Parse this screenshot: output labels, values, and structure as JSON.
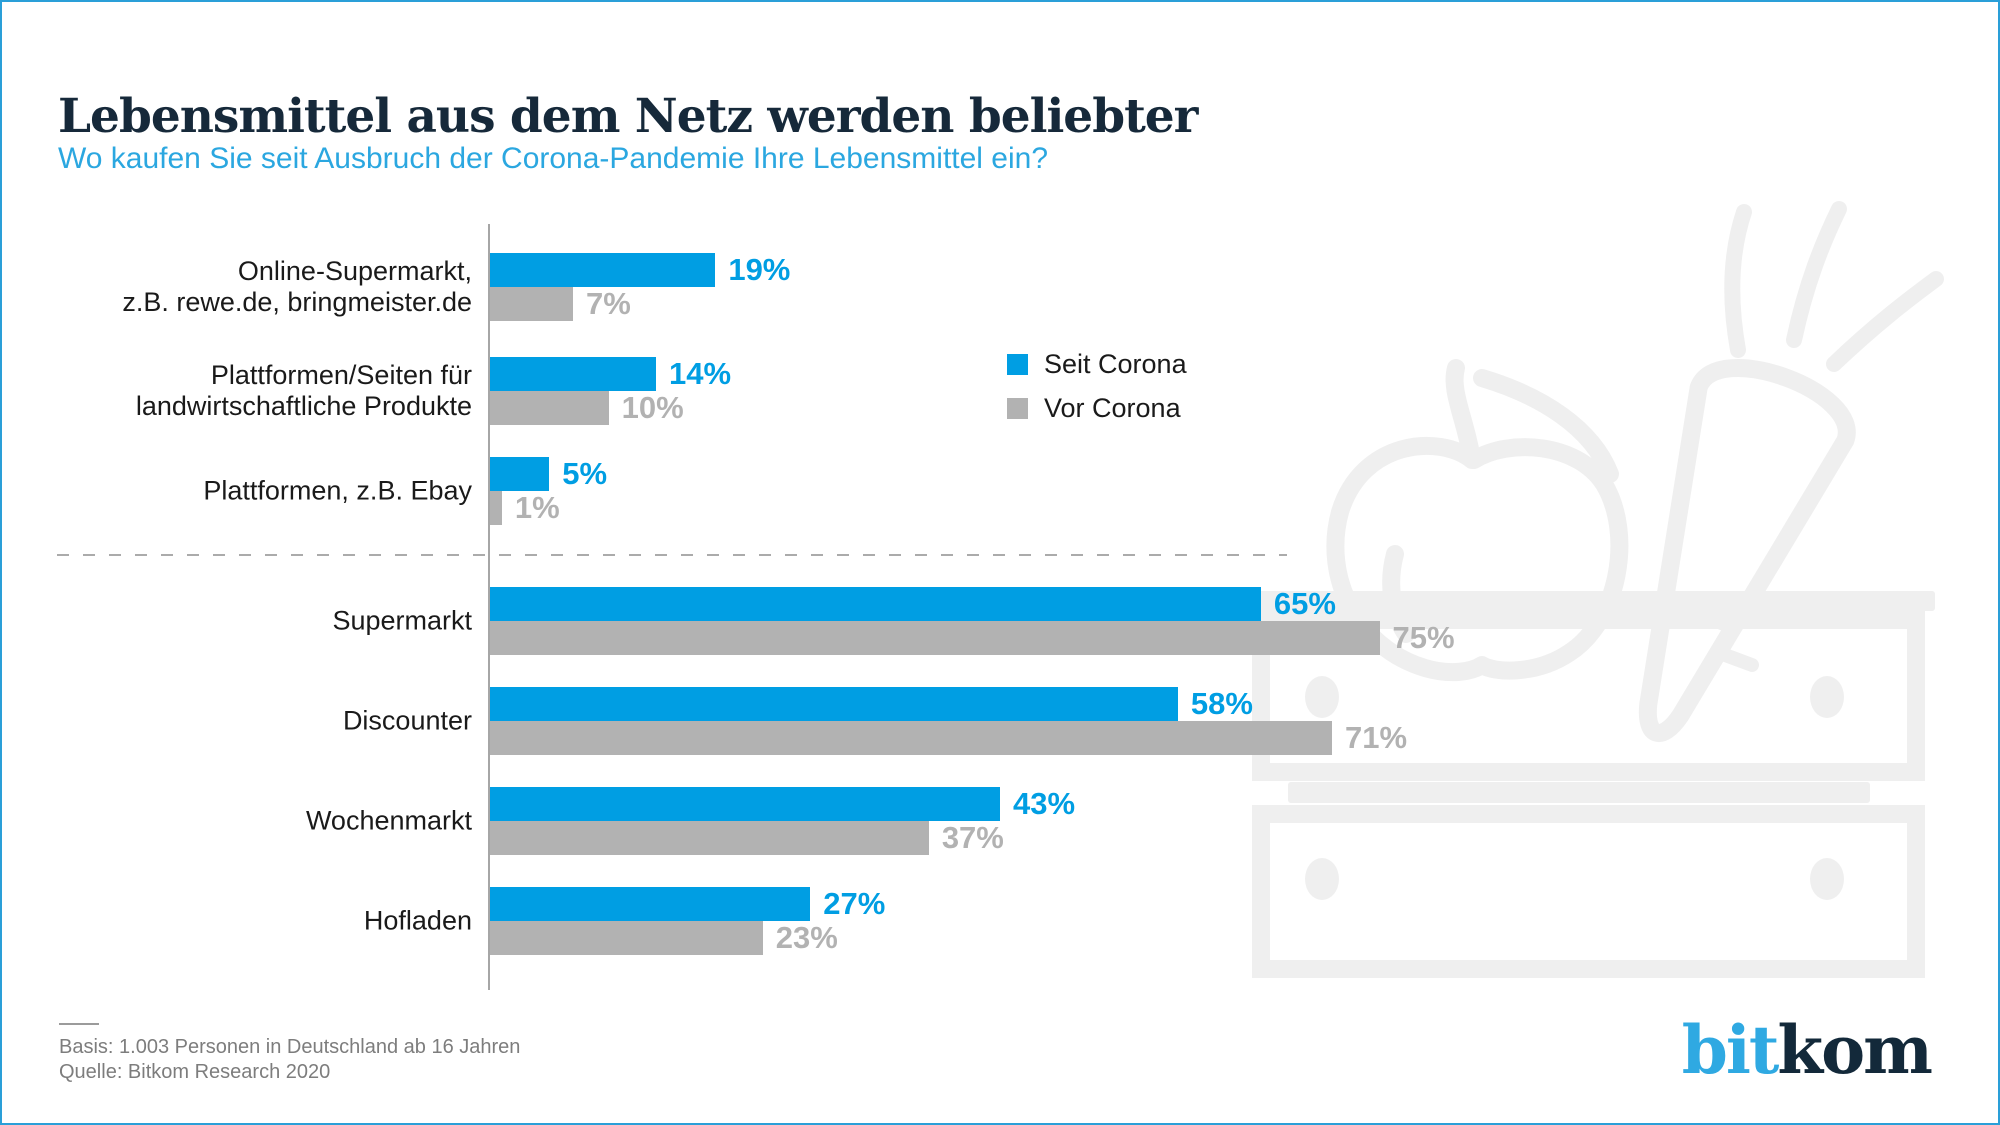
{
  "page": {
    "logo": {
      "part1": "bit",
      "part2": "kom"
    }
  },
  "colors": {
    "seit_corona_blue": "#009EE3",
    "vor_corona_gray": "#B2B2B2",
    "title_dark": "#16293A",
    "subtitle_blue": "#2BA7E0",
    "page_border_blue": "#2A9FD8",
    "footer_gray": "#7D7D7D",
    "illustration_gray": "#EFEFEF"
  },
  "chart_data": {
    "type": "bar",
    "orientation": "horizontal",
    "unit": "percent",
    "title": "Lebensmittel aus dem Netz werden beliebter",
    "subtitle": "Wo kaufen Sie seit Ausbruch der Corona-Pandemie Ihre Lebensmittel ein?",
    "xlim": [
      0,
      100
    ],
    "grid": false,
    "legend_position": "right of first groups",
    "legend": [
      {
        "label": "Seit Corona",
        "color": "#009EE3"
      },
      {
        "label": "Vor Corona",
        "color": "#B2B2B2"
      }
    ],
    "separator_note": "dashed line separates online channels (top 3) from offline channels (bottom 4)",
    "groups": [
      {
        "label_line1": "Online-Supermarkt,",
        "label_line2": "z.B. rewe.de, bringmeister.de",
        "seit": 19,
        "vor": 7,
        "seit_label": "19%",
        "vor_label": "7%"
      },
      {
        "label_line1": "Plattformen/Seiten für",
        "label_line2": "landwirtschaftliche Produkte",
        "seit": 14,
        "vor": 10,
        "seit_label": "14%",
        "vor_label": "10%"
      },
      {
        "label_line1": "Plattformen, z.B. Ebay",
        "label_line2": "",
        "seit": 5,
        "vor": 1,
        "seit_label": "5%",
        "vor_label": "1%"
      },
      {
        "label_line1": "Supermarkt",
        "label_line2": "",
        "seit": 65,
        "vor": 75,
        "seit_label": "65%",
        "vor_label": "75%"
      },
      {
        "label_line1": "Discounter",
        "label_line2": "",
        "seit": 58,
        "vor": 71,
        "seit_label": "58%",
        "vor_label": "71%"
      },
      {
        "label_line1": "Wochenmarkt",
        "label_line2": "",
        "seit": 43,
        "vor": 37,
        "seit_label": "43%",
        "vor_label": "37%"
      },
      {
        "label_line1": "Hofladen",
        "label_line2": "",
        "seit": 27,
        "vor": 23,
        "seit_label": "27%",
        "vor_label": "23%"
      }
    ],
    "basis": "Basis: 1.003 Personen in Deutschland ab 16 Jahren",
    "source": "Quelle: Bitkom Research 2020"
  }
}
